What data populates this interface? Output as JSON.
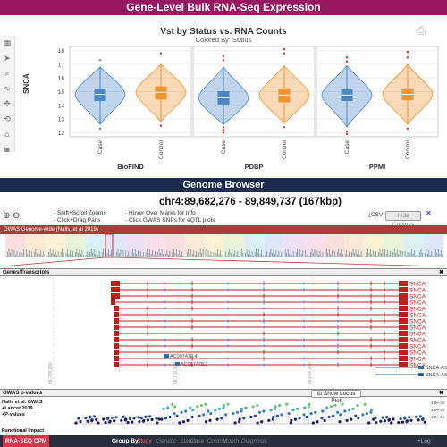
{
  "banners": {
    "top_title": "Gene-Level Bulk RNA-Seq Expression",
    "genome_title": "Genome Browser"
  },
  "tool_icons": [
    "grid-icon",
    "cursor-icon",
    "zoom-icon",
    "lasso-icon",
    "pan-icon",
    "reset-icon",
    "home-icon",
    "camera-icon"
  ],
  "chart_data": {
    "type": "violin",
    "title": "Vst by Status vs. RNA Counts",
    "subtitle": "Colored By: Status",
    "ylabel": "SNCA",
    "ylim": [
      11.7,
      18.3
    ],
    "yticks": [
      12,
      13,
      14,
      15,
      16,
      17,
      18
    ],
    "panels": [
      {
        "name": "BioFIND",
        "groups": [
          {
            "name": "Case",
            "color": "#4a86c8",
            "min": 12.6,
            "q1": 14.35,
            "median": 14.8,
            "q3": 15.2,
            "max": 16.8,
            "outliers": [
              12.3,
              17.3
            ]
          },
          {
            "name": "Control",
            "color": "#f0922f",
            "min": 12.8,
            "q1": 14.45,
            "median": 14.95,
            "q3": 15.35,
            "max": 17.0,
            "outliers": [
              17.8,
              12.5
            ]
          }
        ]
      },
      {
        "name": "PDBP",
        "groups": [
          {
            "name": "Case",
            "color": "#4a86c8",
            "min": 12.6,
            "q1": 14.1,
            "median": 14.55,
            "q3": 15.0,
            "max": 16.8,
            "outliers": [
              12.2,
              12.0,
              12.4,
              17.3,
              17.6
            ]
          },
          {
            "name": "Control",
            "color": "#f0922f",
            "min": 12.7,
            "q1": 14.25,
            "median": 14.75,
            "q3": 15.2,
            "max": 16.9,
            "outliers": [
              12.4,
              17.8,
              18.1
            ]
          }
        ]
      },
      {
        "name": "PPMI",
        "groups": [
          {
            "name": "Case",
            "color": "#4a86c8",
            "min": 12.4,
            "q1": 14.35,
            "median": 14.75,
            "q3": 15.15,
            "max": 16.9,
            "outliers": [
              12.1,
              11.9,
              17.2,
              17.5
            ]
          },
          {
            "name": "Control",
            "color": "#f0922f",
            "min": 12.6,
            "q1": 14.4,
            "median": 14.8,
            "q3": 15.2,
            "max": 17.0,
            "outliers": [
              12.3,
              17.5,
              17.9
            ]
          }
        ]
      }
    ]
  },
  "genome": {
    "locus": "chr4:89,682,276 - 89,849,737 (167kbp)",
    "hints": [
      "- Shift+Scroll Zooms",
      "- Click+Drag Pans",
      "- Hover Over Marks for Info",
      "- Click GWAS SNPs for eQTL plots"
    ],
    "csv_label": "CSV",
    "hide_controls": "Hide Controls",
    "gwas_overview_label": "GWAS Genome-wide (Nalls, et al 2019)",
    "genes_track_label": "Genes/Transcripts",
    "transcripts": [
      "SNCA",
      "SNCA",
      "SNCA",
      "SNCA",
      "SNCA",
      "SNCA",
      "SNCA",
      "SNCA",
      "SNCA",
      "SNCA",
      "SNCA",
      "SNCA",
      "SNCA",
      "SNCA"
    ],
    "small_genes": [
      "AC097478.4",
      "AC097478.3"
    ],
    "right_labels": [
      "SNCA-AS",
      "SNCA-AS"
    ],
    "axis_positions": [
      "89,700,000",
      "89,750,000",
      "89,800,000"
    ],
    "pvalue_track_label": "GWAS p-values",
    "show_locus_plot": "Show Locus Plot",
    "pvalue_legend": [
      "Nalls et al. GWAS",
      "+Lancet 2019",
      "+P-values"
    ],
    "pvalue_ticks": [
      "1.0e-30",
      "1.0e-20",
      "1.0e-10"
    ],
    "functional_impact": "Functional Impact"
  },
  "bottom_bar": {
    "left": "RNA-SEQ CPM",
    "group_by": "Group By",
    "study": "Study",
    "items": [
      "Genetic_Status",
      "Case_Control",
      "Month",
      "Diagnosis"
    ],
    "right": "+Log"
  }
}
